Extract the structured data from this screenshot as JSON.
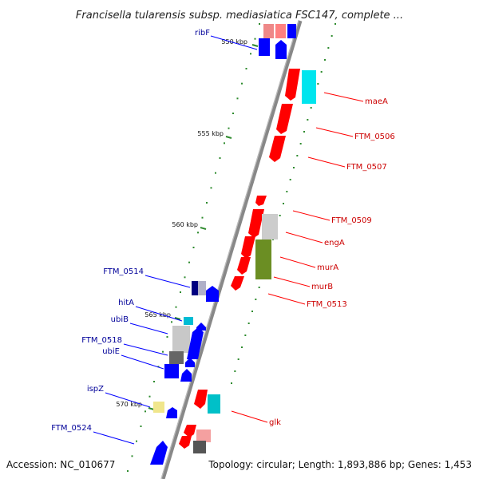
{
  "title": "Francisella tularensis subsp. mediasiatica FSC147, complete ...",
  "footer": {
    "accession": "Accession: NC_010677",
    "summary": "Topology: circular; Length: 1,893,886 bp; Genes: 1,453"
  },
  "colors": {
    "forward_gene": "#ff0000",
    "reverse_gene": "#0000ff",
    "forward_label": "#cc0000",
    "reverse_label": "#000099",
    "backbone": "#888888",
    "tick": "#2e8b2e"
  },
  "ticks": [
    {
      "label": "550 kbp"
    },
    {
      "label": "555 kbp"
    },
    {
      "label": "560 kbp"
    },
    {
      "label": "565 kbp"
    },
    {
      "label": "570 kbp"
    }
  ],
  "labels_reverse": [
    {
      "name": "ribF"
    },
    {
      "name": "FTM_0514"
    },
    {
      "name": "hitA"
    },
    {
      "name": "ubiB"
    },
    {
      "name": "FTM_0518"
    },
    {
      "name": "ubiE"
    },
    {
      "name": "ispZ"
    },
    {
      "name": "FTM_0524"
    }
  ],
  "labels_forward": [
    {
      "name": "maeA"
    },
    {
      "name": "FTM_0506"
    },
    {
      "name": "FTM_0507"
    },
    {
      "name": "FTM_0509"
    },
    {
      "name": "engA"
    },
    {
      "name": "murA"
    },
    {
      "name": "murB"
    },
    {
      "name": "FTM_0513"
    },
    {
      "name": "glk"
    }
  ]
}
